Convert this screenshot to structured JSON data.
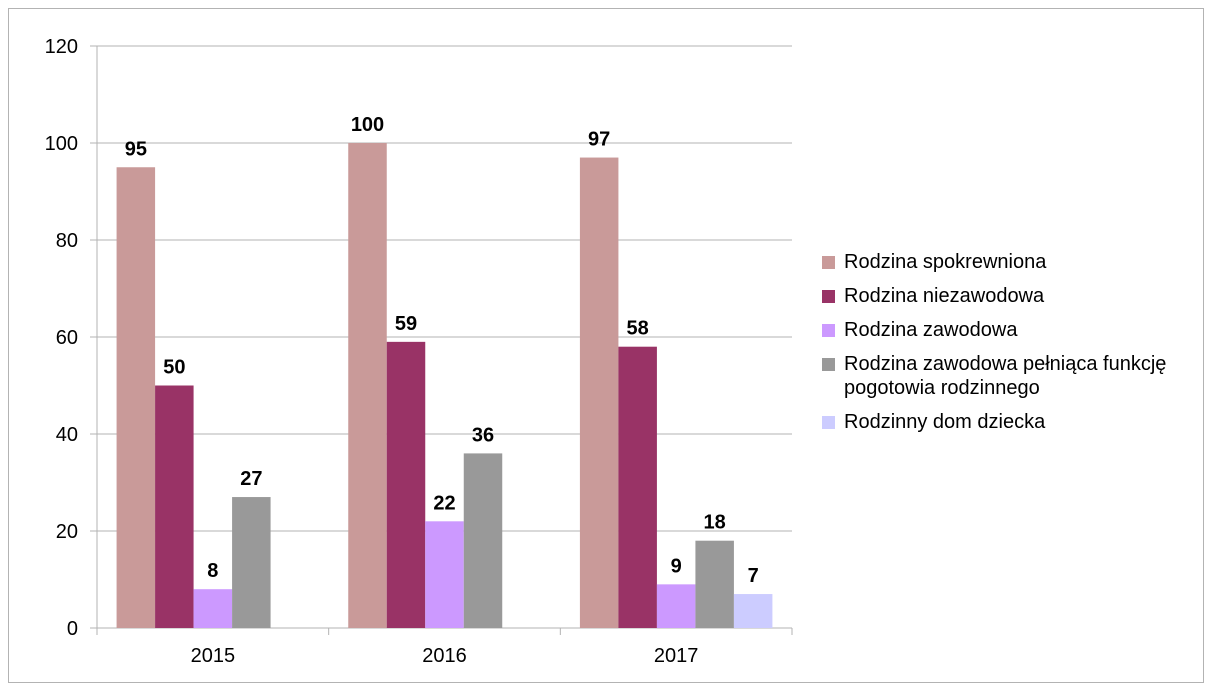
{
  "chart_data": {
    "type": "bar",
    "categories": [
      "2015",
      "2016",
      "2017"
    ],
    "series": [
      {
        "name": "Rodzina spokrewniona",
        "color": "#c99a99",
        "values": [
          95,
          100,
          97
        ]
      },
      {
        "name": "Rodzina niezawodowa",
        "color": "#993366",
        "values": [
          50,
          59,
          58
        ]
      },
      {
        "name": "Rodzina zawodowa",
        "color": "#cc99ff",
        "values": [
          8,
          22,
          9
        ]
      },
      {
        "name": "Rodzina zawodowa pełniąca funkcję pogotowia rodzinnego",
        "color": "#999999",
        "values": [
          27,
          36,
          18
        ]
      },
      {
        "name": "Rodzinny dom dziecka",
        "color": "#ccccff",
        "values": [
          null,
          null,
          7
        ]
      }
    ],
    "ylim": [
      0,
      120
    ],
    "yticks": [
      "0",
      "20",
      "40",
      "60",
      "80",
      "100",
      "120"
    ],
    "grid": true,
    "legend_position": "right",
    "title": "",
    "xlabel": "",
    "ylabel": ""
  }
}
